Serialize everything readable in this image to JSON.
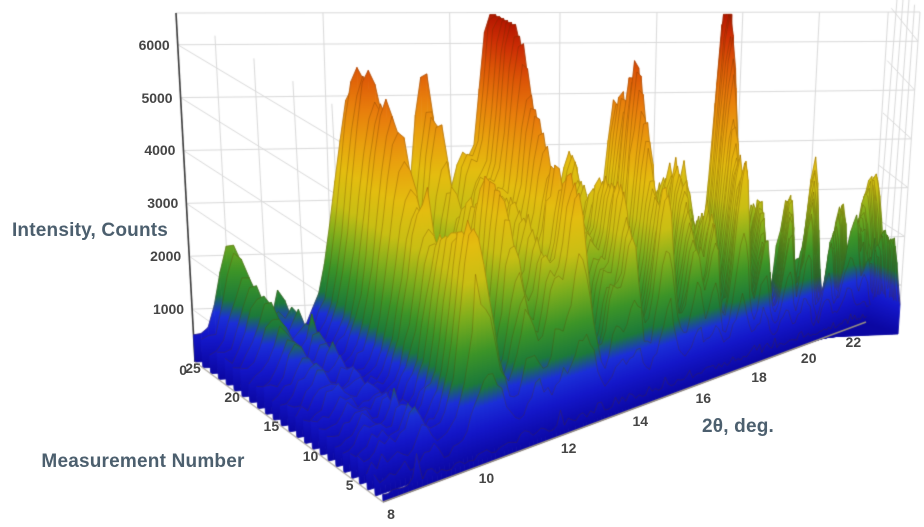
{
  "page": {
    "background": "#ffffff"
  },
  "chart_data": {
    "type": "surface",
    "title": "",
    "xlabel": "2θ, deg.",
    "ylabel": "Measurement Number",
    "zlabel": "Intensity, Counts",
    "x_range": [
      8,
      23
    ],
    "x_step": 0.1,
    "y_range": [
      1,
      25
    ],
    "z_range": [
      0,
      6600
    ],
    "x_ticks": [
      8,
      10,
      12,
      14,
      16,
      18,
      20,
      22
    ],
    "y_ticks": [
      5,
      10,
      15,
      20,
      25
    ],
    "z_ticks": [
      0,
      1000,
      2000,
      3000,
      4000,
      5000,
      6000
    ],
    "grid": true,
    "legend": "none",
    "colormap": [
      [
        0.0,
        "#0b07a2"
      ],
      [
        0.08,
        "#1417c9"
      ],
      [
        0.14,
        "#1b2fd8"
      ],
      [
        0.19,
        "#1c7a3a"
      ],
      [
        0.27,
        "#3c9428"
      ],
      [
        0.36,
        "#7fae1d"
      ],
      [
        0.45,
        "#c9bf14"
      ],
      [
        0.55,
        "#e4bd10"
      ],
      [
        0.65,
        "#e9a00e"
      ],
      [
        0.75,
        "#e87d0c"
      ],
      [
        0.85,
        "#dc5507"
      ],
      [
        0.93,
        "#cd2f05"
      ],
      [
        1.0,
        "#b21500"
      ]
    ],
    "grid_color": "#dadada",
    "z_axis_color": "#3a3a3a",
    "x_axis_line_color": "#978f82",
    "y_axis_line_color": "#b5b1a9",
    "edge_highlight": "rgba(85,48,0,0.28)",
    "seed": 20,
    "noise": {
      "base": 60,
      "amp": 200,
      "spike_prob": 0.02,
      "spike_amp": 550
    },
    "front_ramp_rows": 3,
    "background_humps": [
      {
        "center": 13.5,
        "sigma": 4.2,
        "amp": 650
      },
      {
        "center": 19.5,
        "sigma": 3.0,
        "amp": 280
      }
    ],
    "peaks": [
      {
        "center": 8.55,
        "sigma": 0.18,
        "amp": 1800,
        "g0": 0.05,
        "g1": 0.95,
        "pow": 2.0,
        "wamp": 0.05,
        "wfreq": 1.0,
        "wph": 0.0
      },
      {
        "center": 9.1,
        "sigma": 0.12,
        "amp": 800,
        "g0": 0.5,
        "g1": 0.2,
        "pow": 1.0,
        "wamp": 0.2,
        "wfreq": 1.3,
        "wph": 0.2
      },
      {
        "center": 10.4,
        "sigma": 0.3,
        "amp": 4600,
        "g0": 0.55,
        "g1": 0.45,
        "pow": 1.0,
        "wamp": 0.14,
        "wfreq": 1.3,
        "wph": 0.2
      },
      {
        "center": 11.55,
        "sigma": 0.22,
        "amp": 4200,
        "g0": 0.5,
        "g1": 0.4,
        "pow": 1.0,
        "wamp": 0.18,
        "wfreq": 1.7,
        "wph": 0.55
      },
      {
        "center": 12.15,
        "sigma": 0.16,
        "amp": 3000,
        "g0": 0.55,
        "g1": 0.35,
        "pow": 1.0,
        "wamp": 0.1,
        "wfreq": 1.1,
        "wph": 0.8
      },
      {
        "center": 12.75,
        "sigma": 0.26,
        "amp": 6300,
        "g0": 0.45,
        "g1": 0.55,
        "pow": 1.3,
        "wamp": 0.07,
        "wfreq": 1.4,
        "wph": 0.1
      },
      {
        "center": 13.7,
        "sigma": 0.15,
        "amp": 2500,
        "g0": 0.6,
        "g1": 0.2,
        "pow": 1.0,
        "wamp": 0.15,
        "wfreq": 1.2,
        "wph": 0.5
      },
      {
        "center": 14.2,
        "sigma": 0.2,
        "amp": 3800,
        "g0": 0.55,
        "g1": 0.3,
        "pow": 1.0,
        "wamp": 0.15,
        "wfreq": 1.2,
        "wph": 0.8
      },
      {
        "center": 15.15,
        "sigma": 0.24,
        "amp": 5200,
        "g0": 0.5,
        "g1": 0.42,
        "pow": 1.0,
        "wamp": 0.12,
        "wfreq": 1.5,
        "wph": 0.3
      },
      {
        "center": 16.1,
        "sigma": 0.2,
        "amp": 3300,
        "g0": 0.6,
        "g1": 0.25,
        "pow": 1.0,
        "wamp": 0.15,
        "wfreq": 1.1,
        "wph": 0.6
      },
      {
        "center": 16.7,
        "sigma": 0.16,
        "amp": 2900,
        "g0": 0.55,
        "g1": 0.25,
        "pow": 1.0,
        "wamp": 0.12,
        "wfreq": 1.3,
        "wph": 0.9
      },
      {
        "center": 17.6,
        "sigma": 0.22,
        "amp": 6100,
        "g0": 0.4,
        "g1": 0.6,
        "pow": 1.6,
        "wamp": 0.06,
        "wfreq": 1.2,
        "wph": 0.2
      },
      {
        "center": 18.45,
        "sigma": 0.18,
        "amp": 2500,
        "g0": 0.6,
        "g1": 0.25,
        "pow": 1.0,
        "wamp": 0.1,
        "wfreq": 1.4,
        "wph": 0.4
      },
      {
        "center": 19.35,
        "sigma": 0.18,
        "amp": 2600,
        "g0": 0.6,
        "g1": 0.3,
        "pow": 1.0,
        "wamp": 0.08,
        "wfreq": 1.1,
        "wph": 0.7
      },
      {
        "center": 20.1,
        "sigma": 0.18,
        "amp": 2800,
        "g0": 0.55,
        "g1": 0.35,
        "pow": 1.0,
        "wamp": 0.1,
        "wfreq": 1.2,
        "wph": 0.1
      },
      {
        "center": 21.0,
        "sigma": 0.16,
        "amp": 2300,
        "g0": 0.6,
        "g1": 0.3,
        "pow": 1.0,
        "wamp": 0.08,
        "wfreq": 1.0,
        "wph": 0.5
      },
      {
        "center": 21.95,
        "sigma": 0.28,
        "amp": 2900,
        "g0": 0.5,
        "g1": 0.45,
        "pow": 1.0,
        "wamp": 0.08,
        "wfreq": 1.2,
        "wph": 0.3
      },
      {
        "center": 22.7,
        "sigma": 0.18,
        "amp": 1900,
        "g0": 0.5,
        "g1": 0.3,
        "pow": 1.0,
        "wamp": 0.1,
        "wfreq": 1.0,
        "wph": 0.6
      }
    ]
  }
}
